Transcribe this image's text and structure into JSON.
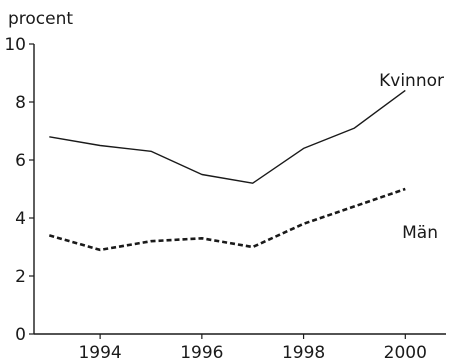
{
  "chart_data": {
    "type": "line",
    "ylabel": "procent",
    "ylim": [
      0,
      10
    ],
    "yticks": [
      0,
      2,
      4,
      6,
      8,
      10
    ],
    "xlim": [
      1992.7,
      2000.8
    ],
    "xticks": [
      1994,
      1996,
      1998,
      2000
    ],
    "grid": false,
    "series": [
      {
        "name": "Kvinnor",
        "style": "solid",
        "color": "#1a1a1a",
        "x": [
          1993,
          1994,
          1995,
          1996,
          1997,
          1998,
          1999,
          2000
        ],
        "values": [
          6.8,
          6.5,
          6.3,
          5.5,
          5.2,
          6.4,
          7.1,
          8.4
        ]
      },
      {
        "name": "Män",
        "style": "dashed",
        "color": "#1a1a1a",
        "x": [
          1993,
          1994,
          1995,
          1996,
          1997,
          1998,
          1999,
          2000
        ],
        "values": [
          3.4,
          2.9,
          3.2,
          3.3,
          3.0,
          3.8,
          4.4,
          5.0
        ]
      }
    ]
  }
}
